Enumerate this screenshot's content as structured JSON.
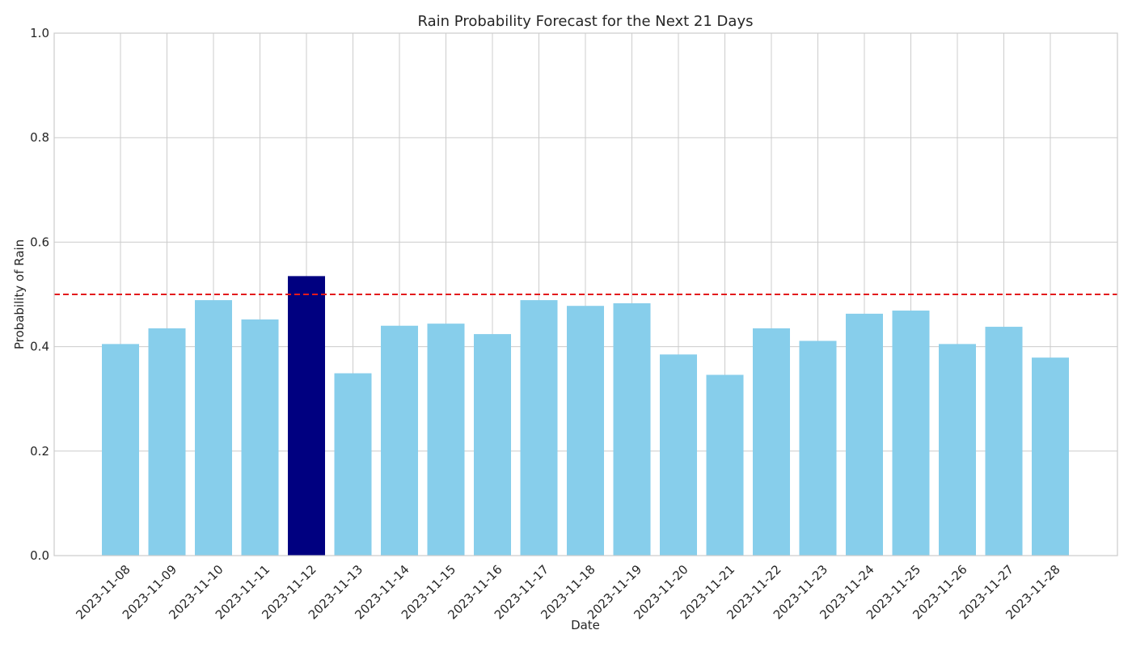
{
  "chart_data": {
    "type": "bar",
    "title": "Rain Probability Forecast for the Next 21 Days",
    "xlabel": "Date",
    "ylabel": "Probability of Rain",
    "ylim": [
      0,
      1
    ],
    "yticks": [
      "0.0",
      "0.2",
      "0.4",
      "0.6",
      "0.8",
      "1.0"
    ],
    "grid": true,
    "categories": [
      "2023-11-08",
      "2023-11-09",
      "2023-11-10",
      "2023-11-11",
      "2023-11-12",
      "2023-11-13",
      "2023-11-14",
      "2023-11-15",
      "2023-11-16",
      "2023-11-17",
      "2023-11-18",
      "2023-11-19",
      "2023-11-20",
      "2023-11-21",
      "2023-11-22",
      "2023-11-23",
      "2023-11-24",
      "2023-11-25",
      "2023-11-26",
      "2023-11-27",
      "2023-11-28"
    ],
    "values": [
      0.405,
      0.435,
      0.489,
      0.452,
      0.535,
      0.349,
      0.44,
      0.444,
      0.424,
      0.489,
      0.478,
      0.483,
      0.385,
      0.346,
      0.435,
      0.411,
      0.463,
      0.469,
      0.405,
      0.438,
      0.379
    ],
    "bar_color": "#87ceeb",
    "highlight_color": "#000080",
    "highlight_category": "2023-11-12",
    "threshold": {
      "value": 0.5,
      "color": "#e31a1c",
      "style": "dashed"
    }
  }
}
